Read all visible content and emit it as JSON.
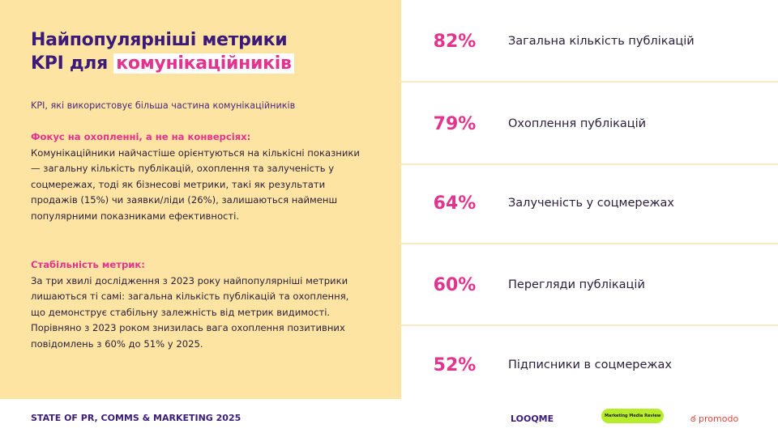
{
  "title": {
    "line1": "Найпопулярніші метрики",
    "line2_prefix": "KPI для ",
    "line2_highlight": "комунікаційників"
  },
  "subtitle": "KPI, які використовує більша частина комунікаційників",
  "sections": [
    {
      "heading": "Фокус на охопленні, а не на конверсіях:",
      "body": "Комунікаційники найчастіше орієнтуються на кількісні показники — загальну кількість публікацій, охоплення та залученість у соцмережах, тоді як бізнесові метрики, такі як результати продажів (15%) чи заявки/ліди (26%), залишаються найменш популярними показниками ефективності."
    },
    {
      "heading": "Стабільність метрик:",
      "body": "За три хвилі дослідження з 2023 року найпопулярніші метрики лишаються ті самі: загальна кількість публікацій та охоплення, що демонструє стабільну залежність від метрик видимості. Порівняно з 2023 роком знизилась вага охоплення позитивних повідомлень з 60% до 51% у 2025."
    }
  ],
  "metrics": [
    {
      "value": "82%",
      "label": "Загальна кількість публікацій"
    },
    {
      "value": "79%",
      "label": "Охоплення публікацій"
    },
    {
      "value": "64%",
      "label": "Залученість у соцмережах"
    },
    {
      "value": "60%",
      "label": "Перегляди публікацій"
    },
    {
      "value": "52%",
      "label": "Підписники в соцмережах"
    }
  ],
  "footer": "STATE OF PR, COMMS & MARKETING 2025",
  "logos": [
    "LOOQME",
    "Marketing Media Review",
    "promodo"
  ],
  "colors": {
    "accent": "#e2348f",
    "primary": "#3b1a7a",
    "panel": "#fde4a3"
  }
}
